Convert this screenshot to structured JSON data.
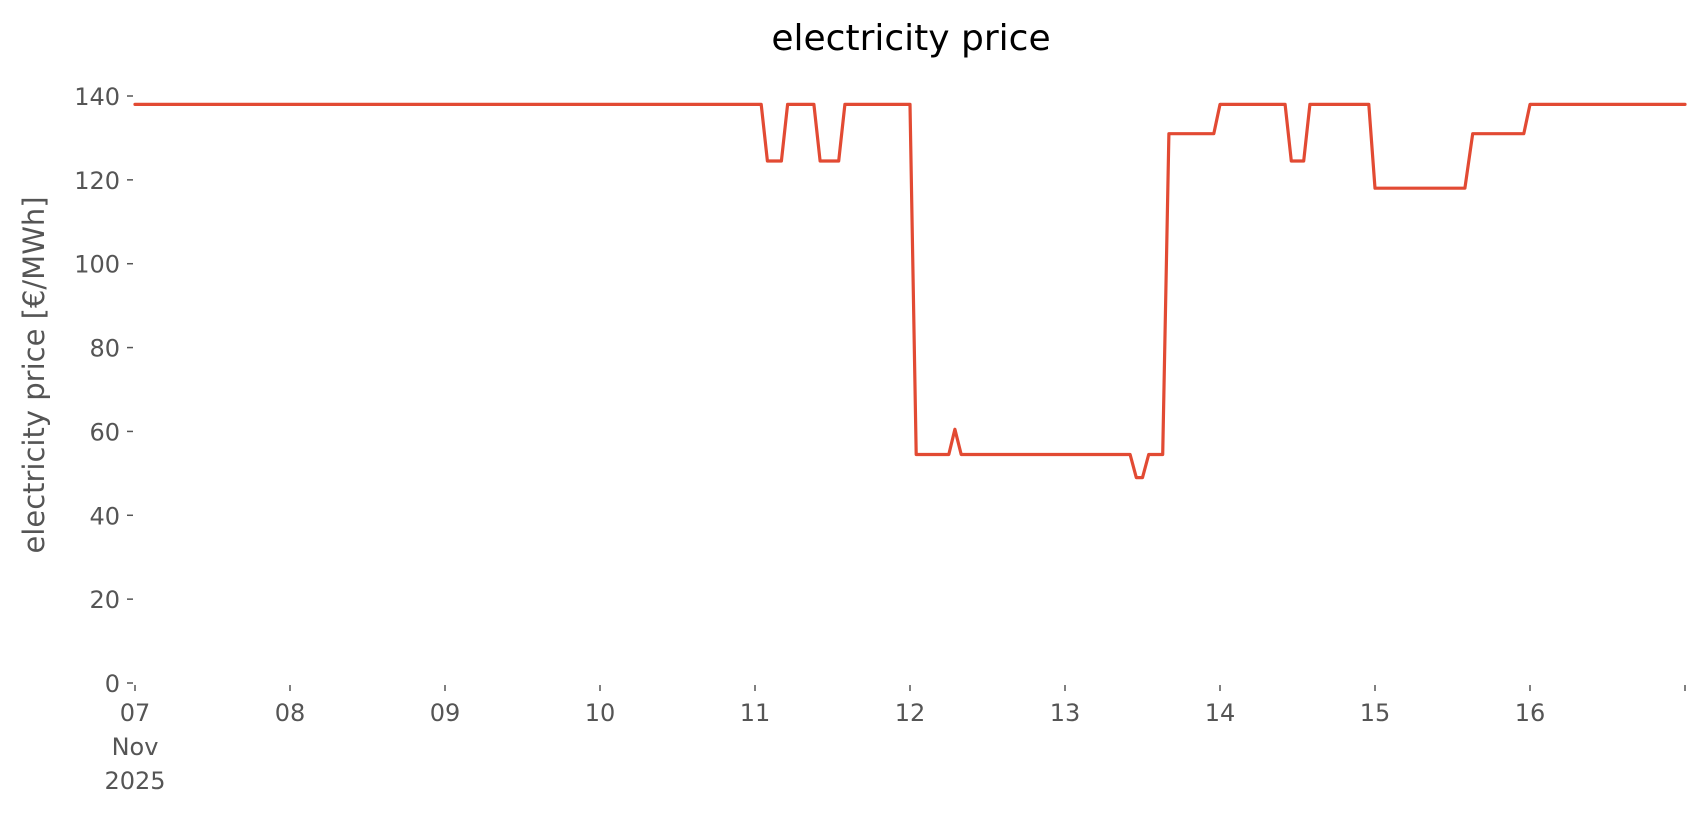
{
  "chart_data": {
    "type": "line",
    "title": "electricity price",
    "xlabel": "",
    "ylabel": "electricity price [€/MWh]",
    "x_tick_labels": [
      {
        "day": 7,
        "lines": [
          "07",
          "Nov",
          "2025"
        ]
      },
      {
        "day": 8,
        "lines": [
          "08"
        ]
      },
      {
        "day": 9,
        "lines": [
          "09"
        ]
      },
      {
        "day": 10,
        "lines": [
          "10"
        ]
      },
      {
        "day": 11,
        "lines": [
          "11"
        ]
      },
      {
        "day": 12,
        "lines": [
          "12"
        ]
      },
      {
        "day": 13,
        "lines": [
          "13"
        ]
      },
      {
        "day": 14,
        "lines": [
          "14"
        ]
      },
      {
        "day": 15,
        "lines": [
          "15"
        ]
      },
      {
        "day": 16,
        "lines": [
          "16"
        ]
      }
    ],
    "y_ticks": [
      0,
      20,
      40,
      60,
      80,
      100,
      120,
      140
    ],
    "xlim_days": [
      7,
      17
    ],
    "ylim": [
      0,
      140
    ],
    "grid": false,
    "series": [
      {
        "color": "#E24A33",
        "points": [
          [
            7.0,
            138.0
          ],
          [
            11.04,
            138.0
          ],
          [
            11.08,
            124.5
          ],
          [
            11.17,
            124.5
          ],
          [
            11.21,
            138.0
          ],
          [
            11.38,
            138.0
          ],
          [
            11.42,
            124.5
          ],
          [
            11.54,
            124.5
          ],
          [
            11.58,
            138.0
          ],
          [
            12.0,
            138.0
          ],
          [
            12.04,
            54.5
          ],
          [
            12.25,
            54.5
          ],
          [
            12.29,
            60.5
          ],
          [
            12.33,
            54.5
          ],
          [
            13.42,
            54.5
          ],
          [
            13.46,
            49.0
          ],
          [
            13.5,
            49.0
          ],
          [
            13.54,
            54.5
          ],
          [
            13.63,
            54.5
          ],
          [
            13.67,
            131.0
          ],
          [
            13.96,
            131.0
          ],
          [
            14.0,
            138.0
          ],
          [
            14.42,
            138.0
          ],
          [
            14.46,
            124.5
          ],
          [
            14.54,
            124.5
          ],
          [
            14.58,
            138.0
          ],
          [
            14.96,
            138.0
          ],
          [
            15.0,
            118.0
          ],
          [
            15.58,
            118.0
          ],
          [
            15.63,
            131.0
          ],
          [
            15.96,
            131.0
          ],
          [
            16.0,
            138.0
          ],
          [
            17.0,
            138.0
          ]
        ]
      }
    ]
  }
}
